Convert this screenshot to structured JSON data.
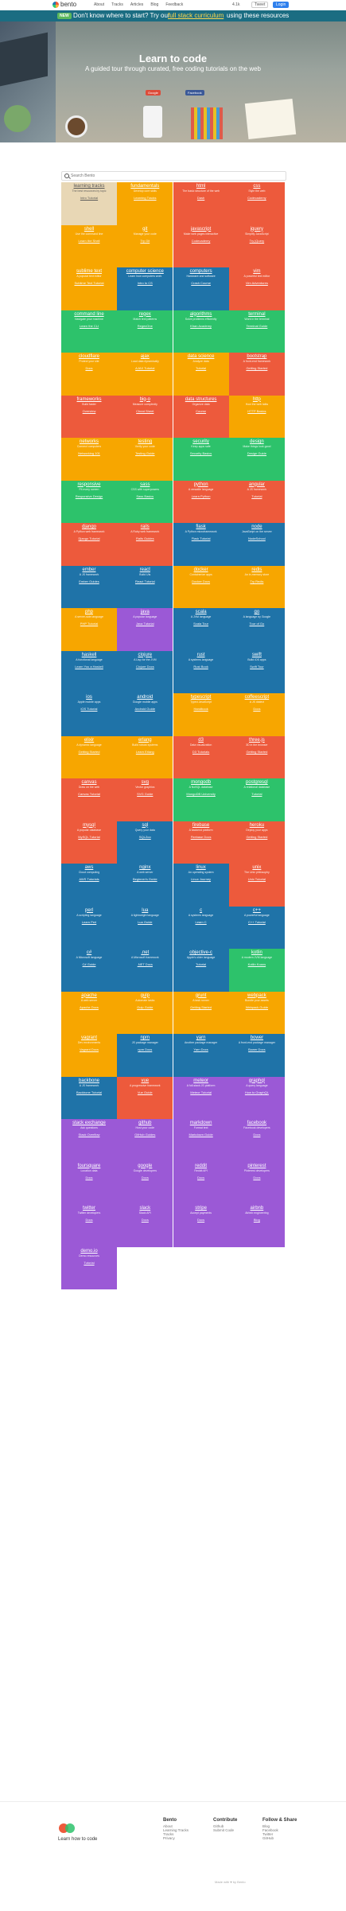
{
  "nav": {
    "logo": "bento",
    "links": [
      "About",
      "Tracks",
      "Articles",
      "Blog",
      "Feedback"
    ],
    "stars": "4.1k",
    "tweet": "Tweet",
    "login": "Login"
  },
  "banner": {
    "badge": "NEW",
    "text1": "Don't know where to start? Try our",
    "link": "full stack curriculum",
    "text2": "using these resources"
  },
  "hero": {
    "title": "Learn to code",
    "subtitle": "A guided tour through curated, free coding tutorials on the web",
    "google_button": "Google",
    "facebook_button": "Facebook"
  },
  "search": {
    "placeholder": "Search Bento"
  },
  "tiles": [
    {
      "name": "learning tracks",
      "desc": "The best resources by topic",
      "res": "Intro Tutorial",
      "color": "tan"
    },
    {
      "name": "fundamentals",
      "desc": "Develop core skills",
      "res": "Learning Tracks",
      "color": "orange"
    },
    {
      "name": "html",
      "desc": "The basic structure of the web",
      "res": "Dash",
      "color": "red"
    },
    {
      "name": "css",
      "desc": "Style the web",
      "res": "Codecademy",
      "color": "red"
    },
    {
      "name": "shell",
      "desc": "Use the command line",
      "res": "Learn the Shell",
      "color": "orange"
    },
    {
      "name": "git",
      "desc": "Manage your code",
      "res": "Try Git",
      "color": "orange"
    },
    {
      "name": "javascript",
      "desc": "Make web pages interactive",
      "res": "Codecademy",
      "color": "red"
    },
    {
      "name": "jquery",
      "desc": "Simplify JavaScript",
      "res": "Try jQuery",
      "color": "red"
    },
    {
      "name": "sublime text",
      "desc": "A popular text editor",
      "res": "Sublime Text Tutorial",
      "color": "orange"
    },
    {
      "name": "computer science",
      "desc": "Learn how computers work",
      "res": "Intro to CS",
      "color": "blue"
    },
    {
      "name": "computers",
      "desc": "Hardware and software",
      "res": "Crash Course",
      "color": "blue"
    },
    {
      "name": "vim",
      "desc": "A powerful text editor",
      "res": "Vim Adventures",
      "color": "red"
    },
    {
      "name": "command line",
      "desc": "Navigate your machine",
      "res": "Learn the CLI",
      "color": "green"
    },
    {
      "name": "regex",
      "desc": "Match text patterns",
      "res": "RegexOne",
      "color": "green"
    },
    {
      "name": "algorithms",
      "desc": "Solve problems efficiently",
      "res": "Khan Academy",
      "color": "green"
    },
    {
      "name": "terminal",
      "desc": "Work in the terminal",
      "res": "Terminal Guide",
      "color": "green"
    },
    {
      "name": "cloudflare",
      "desc": "Protect your site",
      "res": "Docs",
      "color": "orange"
    },
    {
      "name": "ajax",
      "desc": "Load data dynamically",
      "res": "AJAX Tutorial",
      "color": "orange"
    },
    {
      "name": "data science",
      "desc": "Analyze data",
      "res": "Tutorial",
      "color": "orange"
    },
    {
      "name": "bootstrap",
      "desc": "A front-end framework",
      "res": "Getting Started",
      "color": "red"
    },
    {
      "name": "frameworks",
      "desc": "Build faster",
      "res": "Overview",
      "color": "red"
    },
    {
      "name": "big-o",
      "desc": "Measure complexity",
      "res": "Cheat Sheet",
      "color": "red"
    },
    {
      "name": "data structures",
      "desc": "Organize data",
      "res": "Course",
      "color": "red"
    },
    {
      "name": "http",
      "desc": "How the web talks",
      "res": "HTTP Basics",
      "color": "orange"
    },
    {
      "name": "networks",
      "desc": "Connect computers",
      "res": "Networking 101",
      "color": "orange"
    },
    {
      "name": "testing",
      "desc": "Verify your code",
      "res": "Testing Guide",
      "color": "orange"
    },
    {
      "name": "security",
      "desc": "Keep apps safe",
      "res": "Security Basics",
      "color": "green"
    },
    {
      "name": "design",
      "desc": "Make things look good",
      "res": "Design Guide",
      "color": "green"
    },
    {
      "name": "responsive",
      "desc": "Fit every screen",
      "res": "Responsive Design",
      "color": "green"
    },
    {
      "name": "sass",
      "desc": "CSS with superpowers",
      "res": "Sass Basics",
      "color": "green"
    },
    {
      "name": "python",
      "desc": "A versatile language",
      "res": "Learn Python",
      "color": "red"
    },
    {
      "name": "angular",
      "desc": "A JS framework",
      "res": "Tutorial",
      "color": "red"
    },
    {
      "name": "django",
      "desc": "A Python web framework",
      "res": "Django Tutorial",
      "color": "red"
    },
    {
      "name": "rails",
      "desc": "A Ruby web framework",
      "res": "Rails Guides",
      "color": "red"
    },
    {
      "name": "flask",
      "desc": "A Python microframework",
      "res": "Flask Tutorial",
      "color": "blue"
    },
    {
      "name": "node",
      "desc": "JavaScript on the server",
      "res": "NodeSchool",
      "color": "blue"
    },
    {
      "name": "ember",
      "desc": "A JS framework",
      "res": "Ember Guides",
      "color": "blue"
    },
    {
      "name": "react",
      "desc": "Build UIs",
      "res": "React Tutorial",
      "color": "blue"
    },
    {
      "name": "docker",
      "desc": "Containerize apps",
      "res": "Docker Docs",
      "color": "orange"
    },
    {
      "name": "redis",
      "desc": "An in-memory store",
      "res": "Try Redis",
      "color": "orange"
    },
    {
      "name": "php",
      "desc": "A server-side language",
      "res": "PHP Tutorial",
      "color": "orange"
    },
    {
      "name": "java",
      "desc": "A popular language",
      "res": "Java Tutorial",
      "color": "purple"
    },
    {
      "name": "scala",
      "desc": "A JVM language",
      "res": "Scala Tour",
      "color": "blue"
    },
    {
      "name": "go",
      "desc": "A language by Google",
      "res": "Tour of Go",
      "color": "blue"
    },
    {
      "name": "haskell",
      "desc": "A functional language",
      "res": "Learn You a Haskell",
      "color": "blue"
    },
    {
      "name": "clojure",
      "desc": "A Lisp for the JVM",
      "res": "Clojure Docs",
      "color": "blue"
    },
    {
      "name": "rust",
      "desc": "A systems language",
      "res": "Rust Book",
      "color": "blue"
    },
    {
      "name": "swift",
      "desc": "Build iOS apps",
      "res": "Swift Tour",
      "color": "blue"
    },
    {
      "name": "ios",
      "desc": "Apple mobile apps",
      "res": "iOS Tutorial",
      "color": "blue"
    },
    {
      "name": "android",
      "desc": "Google mobile apps",
      "res": "Android Guide",
      "color": "blue"
    },
    {
      "name": "typescript",
      "desc": "Typed JavaScript",
      "res": "Handbook",
      "color": "orange"
    },
    {
      "name": "coffeescript",
      "desc": "A JS dialect",
      "res": "Docs",
      "color": "orange"
    },
    {
      "name": "elixir",
      "desc": "A dynamic language",
      "res": "Getting Started",
      "color": "orange"
    },
    {
      "name": "erlang",
      "desc": "Build robust systems",
      "res": "Learn Erlang",
      "color": "orange"
    },
    {
      "name": "d3",
      "desc": "Data visualization",
      "res": "D3 Tutorials",
      "color": "red"
    },
    {
      "name": "three.js",
      "desc": "3D in the browser",
      "res": "Getting Started",
      "color": "red"
    },
    {
      "name": "canvas",
      "desc": "Draw on the web",
      "res": "Canvas Tutorial",
      "color": "red"
    },
    {
      "name": "svg",
      "desc": "Vector graphics",
      "res": "SVG Guide",
      "color": "red"
    },
    {
      "name": "mongodb",
      "desc": "A NoSQL database",
      "res": "MongoDB University",
      "color": "green"
    },
    {
      "name": "postgresql",
      "desc": "A relational database",
      "res": "Tutorial",
      "color": "green"
    },
    {
      "name": "mysql",
      "desc": "A popular database",
      "res": "MySQL Tutorial",
      "color": "red"
    },
    {
      "name": "sql",
      "desc": "Query your data",
      "res": "SQLZoo",
      "color": "blue"
    },
    {
      "name": "firebase",
      "desc": "A backend platform",
      "res": "Firebase Docs",
      "color": "red"
    },
    {
      "name": "heroku",
      "desc": "Deploy your apps",
      "res": "Getting Started",
      "color": "red"
    },
    {
      "name": "aws",
      "desc": "Cloud computing",
      "res": "AWS Tutorials",
      "color": "blue"
    },
    {
      "name": "nginx",
      "desc": "A web server",
      "res": "Beginner's Guide",
      "color": "blue"
    },
    {
      "name": "linux",
      "desc": "An operating system",
      "res": "Linux Journey",
      "color": "blue"
    },
    {
      "name": "unix",
      "desc": "The Unix philosophy",
      "res": "Unix Tutorial",
      "color": "red"
    },
    {
      "name": "perl",
      "desc": "A scripting language",
      "res": "Learn Perl",
      "color": "blue"
    },
    {
      "name": "lua",
      "desc": "A lightweight language",
      "res": "Lua Guide",
      "color": "blue"
    },
    {
      "name": "c",
      "desc": "A systems language",
      "res": "Learn C",
      "color": "blue"
    },
    {
      "name": "c++",
      "desc": "A powerful language",
      "res": "C++ Tutorial",
      "color": "blue"
    },
    {
      "name": "c#",
      "desc": "A Microsoft language",
      "res": "C# Guide",
      "color": "blue"
    },
    {
      "name": ".net",
      "desc": "A Microsoft framework",
      "res": ".NET Docs",
      "color": "blue"
    },
    {
      "name": "objective-c",
      "desc": "Apple's older language",
      "res": "Tutorial",
      "color": "blue"
    },
    {
      "name": "kotlin",
      "desc": "A modern JVM language",
      "res": "Kotlin Koans",
      "color": "green"
    },
    {
      "name": "apache",
      "desc": "A web server",
      "res": "Apache Docs",
      "color": "orange"
    },
    {
      "name": "gulp",
      "desc": "Automate tasks",
      "res": "Gulp Guide",
      "color": "orange"
    },
    {
      "name": "grunt",
      "desc": "A task runner",
      "res": "Getting Started",
      "color": "orange"
    },
    {
      "name": "webpack",
      "desc": "Bundle your assets",
      "res": "Webpack Guide",
      "color": "orange"
    },
    {
      "name": "vagrant",
      "desc": "Dev environments",
      "res": "Vagrant Docs",
      "color": "orange"
    },
    {
      "name": "npm",
      "desc": "JS package manager",
      "res": "npm Docs",
      "color": "blue"
    },
    {
      "name": "yarn",
      "desc": "Another package manager",
      "res": "Yarn Docs",
      "color": "blue"
    },
    {
      "name": "bower",
      "desc": "A front-end package manager",
      "res": "Bower Docs",
      "color": "blue"
    },
    {
      "name": "backbone",
      "desc": "A JS framework",
      "res": "Backbone Tutorial",
      "color": "blue"
    },
    {
      "name": "vue",
      "desc": "A progressive framework",
      "res": "Vue Guide",
      "color": "red"
    },
    {
      "name": "meteor",
      "desc": "A full-stack JS platform",
      "res": "Meteor Tutorial",
      "color": "purple"
    },
    {
      "name": "graphql",
      "desc": "A query language",
      "res": "How to GraphQL",
      "color": "purple"
    },
    {
      "name": "stack exchange",
      "desc": "Ask questions",
      "res": "Stack Overflow",
      "color": "purple"
    },
    {
      "name": "github",
      "desc": "Host your code",
      "res": "GitHub Guides",
      "color": "purple"
    },
    {
      "name": "markdown",
      "desc": "Format text",
      "res": "Markdown Guide",
      "color": "purple"
    },
    {
      "name": "facebook",
      "desc": "Facebook developers",
      "res": "Docs",
      "color": "purple"
    },
    {
      "name": "foursquare",
      "desc": "Location data",
      "res": "Docs",
      "color": "purple"
    },
    {
      "name": "google",
      "desc": "Google developers",
      "res": "Docs",
      "color": "purple"
    },
    {
      "name": "reddit",
      "desc": "Reddit API",
      "res": "Docs",
      "color": "purple"
    },
    {
      "name": "pinterest",
      "desc": "Pinterest developers",
      "res": "Docs",
      "color": "purple"
    },
    {
      "name": "twitter",
      "desc": "Twitter developers",
      "res": "Docs",
      "color": "purple"
    },
    {
      "name": "slack",
      "desc": "Slack API",
      "res": "Docs",
      "color": "purple"
    },
    {
      "name": "stripe",
      "desc": "Accept payments",
      "res": "Docs",
      "color": "purple"
    },
    {
      "name": "airbnb",
      "desc": "Airbnb engineering",
      "res": "Blog",
      "color": "purple"
    },
    {
      "name": "demo.io",
      "desc": "Demo resources",
      "res": "Tutorial",
      "color": "purple"
    }
  ],
  "footer": {
    "tagline": "Learn how to code",
    "cols": [
      {
        "title": "Bento",
        "links": [
          "About",
          "Learning Tracks",
          "Tracks",
          "Privacy"
        ]
      },
      {
        "title": "Contribute",
        "links": [
          "Github",
          "Submit Code"
        ]
      },
      {
        "title": "Follow & Share",
        "links": [
          "Blog",
          "Facebook",
          "Twitter",
          "GitHub"
        ]
      }
    ],
    "copyright": "Made with ♥ by Bento"
  },
  "colors": {
    "tan": "#e8d7b5",
    "orange": "#f7a600",
    "red": "#ed5a3c",
    "blue": "#1f73a8",
    "green": "#2dc26b",
    "purple": "#9b59d6"
  }
}
